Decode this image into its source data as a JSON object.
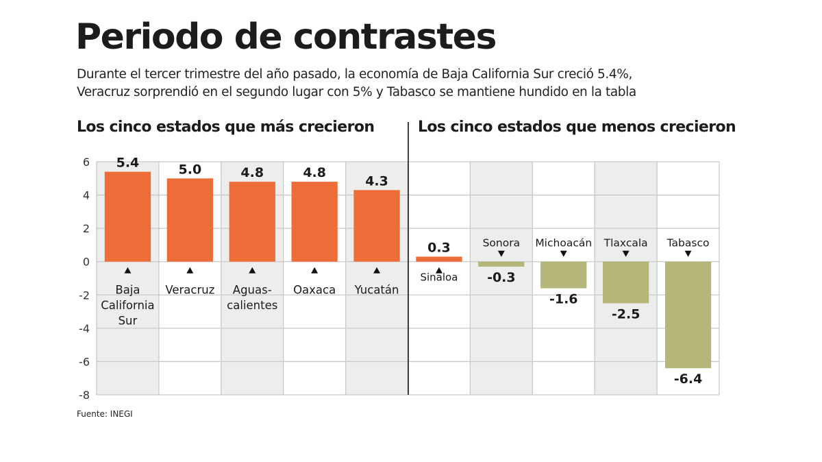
{
  "header": {
    "title": "Periodo de contrastes",
    "subtitle_lines": [
      "Durante el tercer trimestre del año pasado, la economía de Baja California Sur creció 5.4%,",
      "Veracruz sorprendió en el segundo lugar con 5% y Tabasco se mantiene hundido en la tabla"
    ]
  },
  "sections": {
    "left_title": "Los cinco estados que más crecieron",
    "right_title": "Los cinco estados que menos crecieron"
  },
  "source": "Fuente: INEGI",
  "colors": {
    "positive_bar": "#ED6D38",
    "negative_bar": "#B5B67A",
    "shaded_column": "#EDEEEC",
    "grid": "#C8C8C8",
    "divider": "#111111"
  },
  "chart_data": {
    "type": "bar",
    "title": "Periodo de contrastes",
    "xlabel": "",
    "ylabel": "",
    "ylim": [
      -8,
      6
    ],
    "yticks": [
      6,
      4,
      2,
      0,
      -2,
      -4,
      -6,
      -8
    ],
    "grid": true,
    "groups": [
      {
        "name": "Los cinco estados que más crecieron",
        "categories": [
          "Baja California Sur",
          "Veracruz",
          "Aguascalientes",
          "Oaxaca",
          "Yucatán"
        ]
      },
      {
        "name": "Los cinco estados que menos crecieron",
        "categories": [
          "Sinaloa",
          "Sonora",
          "Michoacán",
          "Tlaxcala",
          "Tabasco"
        ]
      }
    ],
    "categories": [
      "Baja California Sur",
      "Veracruz",
      "Aguascalientes",
      "Oaxaca",
      "Yucatán",
      "Sinaloa",
      "Sonora",
      "Michoacán",
      "Tlaxcala",
      "Tabasco"
    ],
    "category_label_lines": [
      [
        "Baja",
        "California",
        "Sur"
      ],
      [
        "Veracruz"
      ],
      [
        "Aguas-",
        "calientes"
      ],
      [
        "Oaxaca"
      ],
      [
        "Yucatán"
      ],
      [
        "Sinaloa"
      ],
      [
        "Sonora"
      ],
      [
        "Michoacán"
      ],
      [
        "Tlaxcala"
      ],
      [
        "Tabasco"
      ]
    ],
    "values": [
      5.4,
      5.0,
      4.8,
      4.8,
      4.3,
      0.3,
      -0.3,
      -1.6,
      -2.5,
      -6.4
    ],
    "value_labels": [
      "5.4",
      "5.0",
      "4.8",
      "4.8",
      "4.3",
      "0.3",
      "-0.3",
      "-1.6",
      "-2.5",
      "-6.4"
    ],
    "column_shaded": [
      true,
      false,
      true,
      false,
      true,
      false,
      true,
      false,
      true,
      false
    ]
  }
}
